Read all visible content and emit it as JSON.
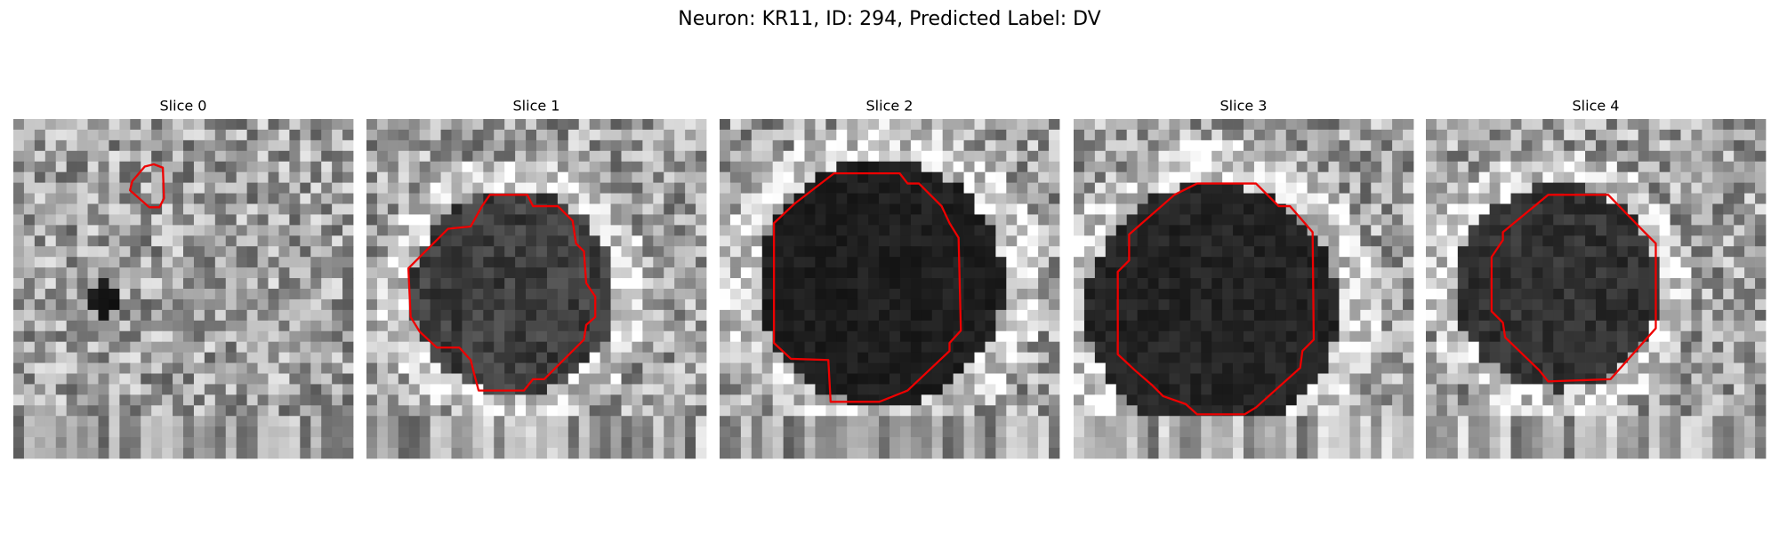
{
  "title": "Neuron: KR11, ID: 294, Predicted Label: DV",
  "panels": [
    {
      "title": "Slice 0"
    },
    {
      "title": "Slice 1"
    },
    {
      "title": "Slice 2"
    },
    {
      "title": "Slice 3"
    },
    {
      "title": "Slice 4"
    }
  ]
}
